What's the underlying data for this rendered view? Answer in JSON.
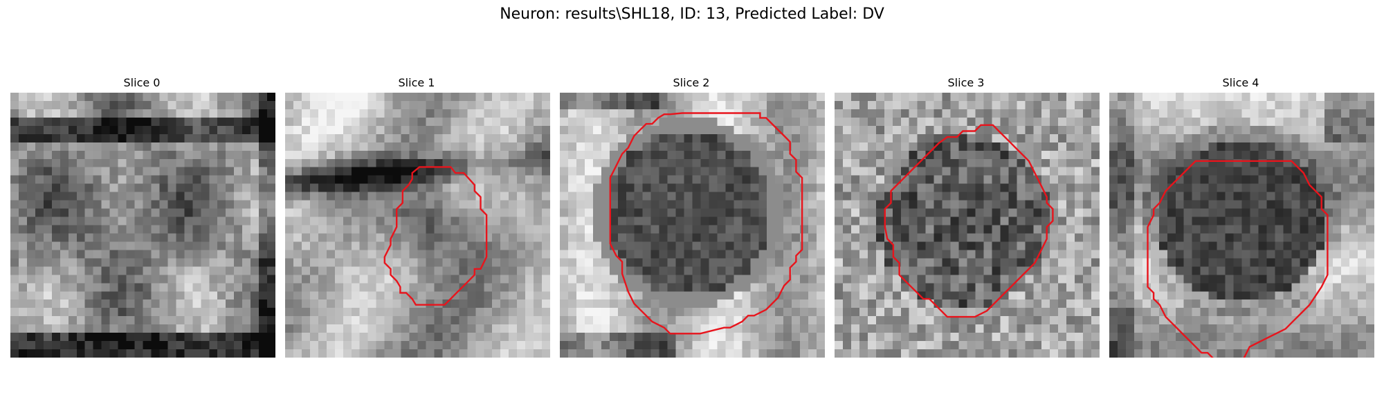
{
  "figure": {
    "title": "Neuron: results\\SHL18, ID: 13, Predicted Label: DV",
    "contour_color": "#e8141c"
  },
  "slices": [
    {
      "title": "Slice 0",
      "has_contour": false
    },
    {
      "title": "Slice 1",
      "has_contour": true
    },
    {
      "title": "Slice 2",
      "has_contour": true
    },
    {
      "title": "Slice 3",
      "has_contour": true
    },
    {
      "title": "Slice 4",
      "has_contour": true
    }
  ]
}
